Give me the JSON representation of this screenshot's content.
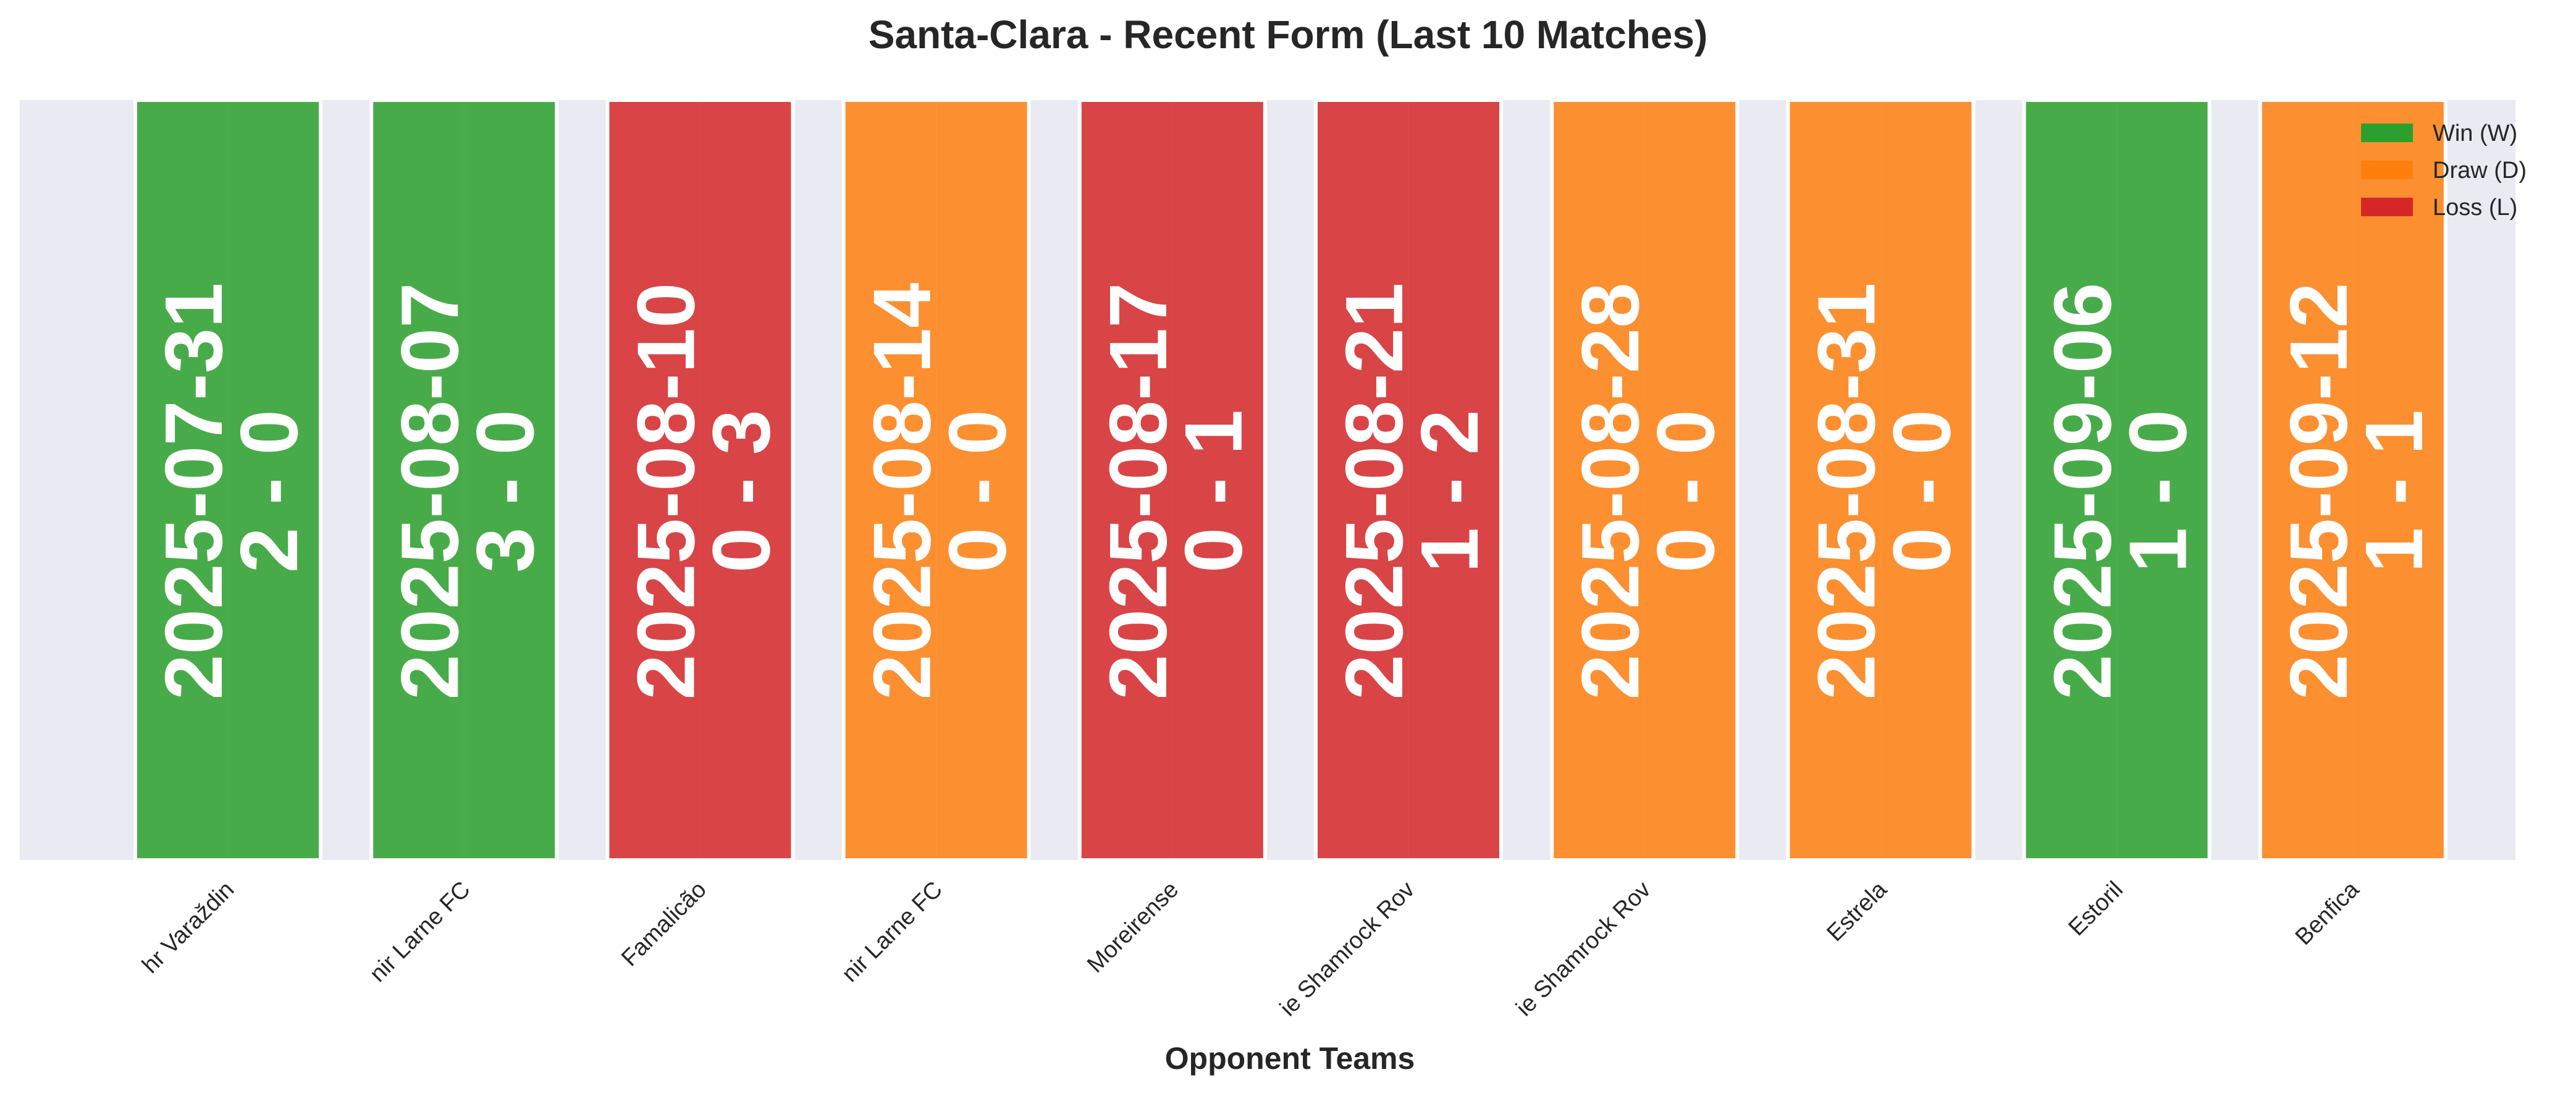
{
  "chart_data": {
    "type": "bar",
    "title": "Santa-Clara - Recent Form (Last 10 Matches)",
    "xlabel": "Opponent Teams",
    "ylabel": "",
    "grid": true,
    "legend_position": "top-right",
    "categories": [
      "hr Varaždin",
      "nir Larne FC",
      "Famalicão",
      "nir Larne FC",
      "Moreirense",
      "ie Shamrock Rov",
      "ie Shamrock Rov",
      "Estrela",
      "Estoril",
      "Benfica"
    ],
    "matches": [
      {
        "opponent": "hr Varaždin",
        "date": "2025-07-31",
        "score": "2 - 0",
        "result": "W"
      },
      {
        "opponent": "nir Larne FC",
        "date": "2025-08-07",
        "score": "3 - 0",
        "result": "W"
      },
      {
        "opponent": "Famalicão",
        "date": "2025-08-10",
        "score": "0 - 3",
        "result": "L"
      },
      {
        "opponent": "nir Larne FC",
        "date": "2025-08-14",
        "score": "0 - 0",
        "result": "D"
      },
      {
        "opponent": "Moreirense",
        "date": "2025-08-17",
        "score": "0 - 1",
        "result": "L"
      },
      {
        "opponent": "ie Shamrock Rov",
        "date": "2025-08-21",
        "score": "1 - 2",
        "result": "L"
      },
      {
        "opponent": "ie Shamrock Rov",
        "date": "2025-08-28",
        "score": "0 - 0",
        "result": "D"
      },
      {
        "opponent": "Estrela",
        "date": "2025-08-31",
        "score": "0 - 0",
        "result": "D"
      },
      {
        "opponent": "Estoril",
        "date": "2025-09-06",
        "score": "1 - 0",
        "result": "W"
      },
      {
        "opponent": "Benfica",
        "date": "2025-09-12",
        "score": "1 - 1",
        "result": "D"
      }
    ],
    "legend": [
      {
        "key": "W",
        "label": "Win (W)",
        "color": "#2ca02c"
      },
      {
        "key": "D",
        "label": "Draw (D)",
        "color": "#ff7f0e"
      },
      {
        "key": "L",
        "label": "Loss (L)",
        "color": "#d62728"
      }
    ],
    "colors": {
      "W": "#2ca02c",
      "D": "#ff7f0e",
      "L": "#d62728",
      "background": "#eaeaf2"
    }
  }
}
